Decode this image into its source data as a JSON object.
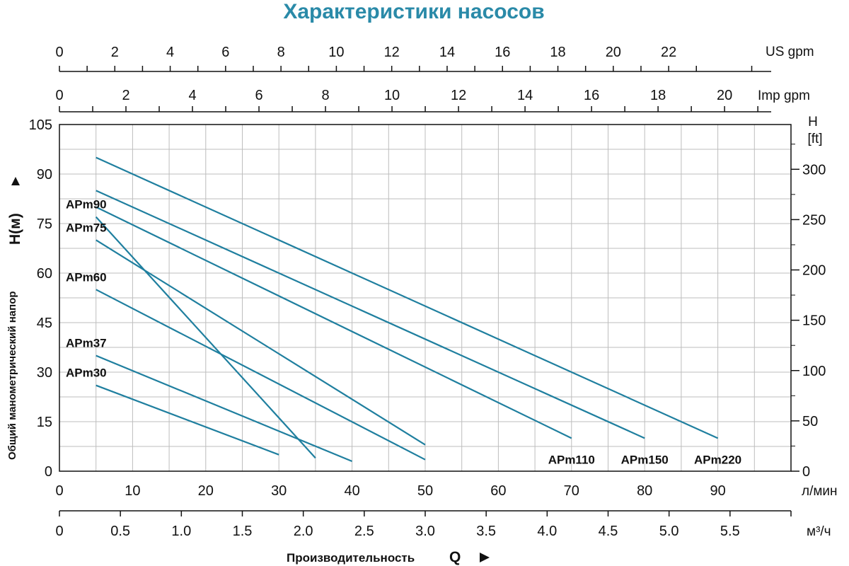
{
  "chart_data": {
    "type": "line",
    "title": "Характеристики насосов",
    "x_unit_lmin": "л/мин",
    "x_unit_m3h": "м³/ч",
    "x_unit_usgpm": "US gpm",
    "x_unit_impgpm": "Imp gpm",
    "y_label": "Общий манометрический напор",
    "y_unit_m": "H(м)",
    "y_right_label": "H",
    "y_right_unit": "[ft]",
    "x_axis_label": "Производительность",
    "x_axis_symbol": "Q",
    "xlim_lmin": [
      0,
      100
    ],
    "ylim_m": [
      0,
      105
    ],
    "x_ticks_lmin": [
      "0",
      "10",
      "20",
      "30",
      "40",
      "50",
      "60",
      "70",
      "80",
      "90"
    ],
    "x_ticks_m3h": [
      "0",
      "0.5",
      "1.0",
      "1.5",
      "2.0",
      "2.5",
      "3.0",
      "3.5",
      "4.0",
      "4.5",
      "5.0",
      "5.5"
    ],
    "x_ticks_usgpm": [
      "0",
      "2",
      "4",
      "6",
      "8",
      "10",
      "12",
      "14",
      "16",
      "18",
      "20",
      "22"
    ],
    "x_ticks_impgpm": [
      "0",
      "2",
      "4",
      "6",
      "8",
      "10",
      "12",
      "14",
      "16",
      "18",
      "20"
    ],
    "y_ticks_m": [
      "0",
      "15",
      "30",
      "45",
      "60",
      "75",
      "90",
      "105"
    ],
    "y_ticks_ft": [
      "0",
      "50",
      "100",
      "150",
      "200",
      "250",
      "300"
    ],
    "grid": true,
    "line_color": "#1f7f9f",
    "title_color": "#2a8aa8",
    "series": [
      {
        "name": "APm30",
        "x": [
          5,
          30
        ],
        "y": [
          26,
          5
        ]
      },
      {
        "name": "APm37",
        "x": [
          5,
          40
        ],
        "y": [
          35,
          3
        ]
      },
      {
        "name": "APm60",
        "x": [
          5,
          50
        ],
        "y": [
          55,
          3.5
        ]
      },
      {
        "name": "APm75",
        "x": [
          5,
          50
        ],
        "y": [
          70,
          8
        ]
      },
      {
        "name": "APm90",
        "x": [
          5,
          35
        ],
        "y": [
          77,
          4
        ]
      },
      {
        "name": "APm110",
        "x": [
          5,
          70
        ],
        "y": [
          80,
          10
        ]
      },
      {
        "name": "APm150",
        "x": [
          5,
          80
        ],
        "y": [
          85,
          10
        ]
      },
      {
        "name": "APm220",
        "x": [
          5,
          90
        ],
        "y": [
          95,
          10
        ]
      }
    ]
  }
}
